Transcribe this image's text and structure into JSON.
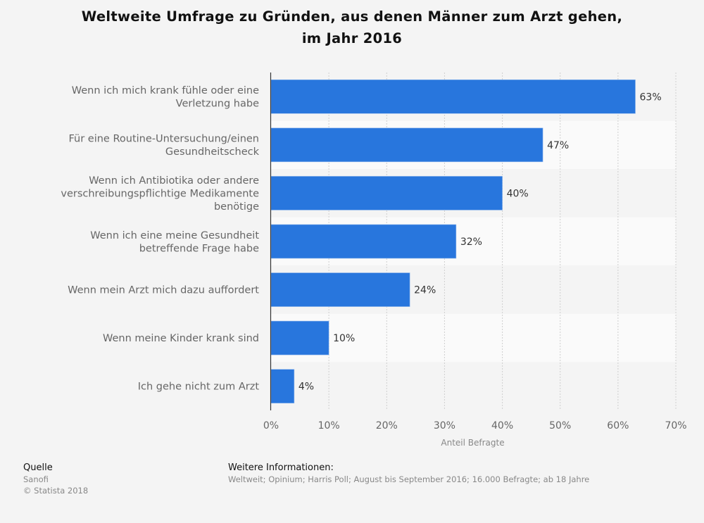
{
  "chart_data": {
    "type": "bar",
    "orientation": "horizontal",
    "title": "Weltweite Umfrage zu Gründen, aus denen Männer zum Arzt gehen, im Jahr 2016",
    "title_lines": [
      "Weltweite Umfrage zu Gründen, aus denen Männer zum Arzt gehen,",
      "im Jahr 2016"
    ],
    "categories": [
      [
        "Wenn ich mich krank fühle oder eine",
        "Verletzung habe"
      ],
      [
        "Für eine Routine-Untersuchung/einen",
        "Gesundheitscheck"
      ],
      [
        "Wenn ich Antibiotika oder andere",
        "verschreibungspflichtige Medikamente",
        "benötige"
      ],
      [
        "Wenn ich eine meine Gesundheit",
        "betreffende Frage habe"
      ],
      [
        "Wenn mein Arzt mich dazu auffordert"
      ],
      [
        "Wenn meine Kinder krank sind"
      ],
      [
        "Ich gehe nicht zum Arzt"
      ]
    ],
    "values": [
      63,
      47,
      40,
      32,
      24,
      10,
      4
    ],
    "data_labels": [
      "63%",
      "47%",
      "40%",
      "32%",
      "24%",
      "10%",
      "4%"
    ],
    "xlabel": "Anteil Befragte",
    "xlim": [
      0,
      70
    ],
    "ticks": [
      0,
      10,
      20,
      30,
      40,
      50,
      60,
      70
    ],
    "tick_labels": [
      "0%",
      "10%",
      "20%",
      "30%",
      "40%",
      "50%",
      "60%",
      "70%"
    ],
    "grid": true,
    "bar_color": "#2876dd"
  },
  "footer": {
    "source_heading": "Quelle",
    "source": "Sanofi",
    "copyright": "© Statista 2018",
    "info_heading": "Weitere Informationen:",
    "info": "Weltweit; Opinium; Harris Poll; August bis September 2016; 16.000 Befragte; ab 18 Jahre"
  }
}
